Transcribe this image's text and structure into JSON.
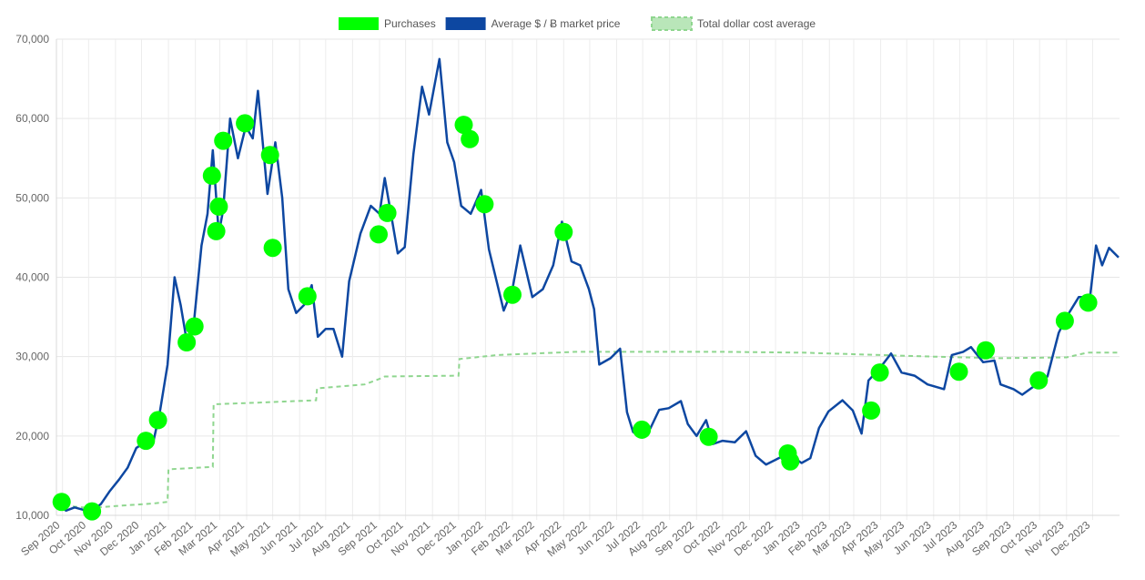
{
  "chart_data": {
    "type": "line",
    "title": "",
    "xlabel": "",
    "ylabel": "",
    "ylim": [
      10000,
      70000
    ],
    "xlim": [
      "2020-08-25",
      "2024-01-01"
    ],
    "grid": true,
    "legend": "top-center",
    "yticks": [
      10000,
      20000,
      30000,
      40000,
      50000,
      60000,
      70000
    ],
    "ytick_labels": [
      "10,000",
      "20,000",
      "30,000",
      "40,000",
      "50,000",
      "60,000",
      "70,000"
    ],
    "xticks": [
      {
        "label": "Sep 2020",
        "date": "2020-09-01"
      },
      {
        "label": "Oct 2020",
        "date": "2020-10-01"
      },
      {
        "label": "Nov 2020",
        "date": "2020-11-01"
      },
      {
        "label": "Dec 2020",
        "date": "2020-12-01"
      },
      {
        "label": "Jan 2021",
        "date": "2021-01-01"
      },
      {
        "label": "Feb 2021",
        "date": "2021-02-01"
      },
      {
        "label": "Mar 2021",
        "date": "2021-03-01"
      },
      {
        "label": "Apr 2021",
        "date": "2021-04-01"
      },
      {
        "label": "May 2021",
        "date": "2021-05-01"
      },
      {
        "label": "Jun 2021",
        "date": "2021-06-01"
      },
      {
        "label": "Jul 2021",
        "date": "2021-07-01"
      },
      {
        "label": "Aug 2021",
        "date": "2021-08-01"
      },
      {
        "label": "Sep 2021",
        "date": "2021-09-01"
      },
      {
        "label": "Oct 2021",
        "date": "2021-10-01"
      },
      {
        "label": "Nov 2021",
        "date": "2021-11-01"
      },
      {
        "label": "Dec 2021",
        "date": "2021-12-01"
      },
      {
        "label": "Jan 2022",
        "date": "2022-01-01"
      },
      {
        "label": "Feb 2022",
        "date": "2022-02-01"
      },
      {
        "label": "Mar 2022",
        "date": "2022-03-01"
      },
      {
        "label": "Apr 2022",
        "date": "2022-04-01"
      },
      {
        "label": "May 2022",
        "date": "2022-05-01"
      },
      {
        "label": "Jun 2022",
        "date": "2022-06-01"
      },
      {
        "label": "Jul 2022",
        "date": "2022-07-01"
      },
      {
        "label": "Aug 2022",
        "date": "2022-08-01"
      },
      {
        "label": "Sep 2022",
        "date": "2022-09-01"
      },
      {
        "label": "Oct 2022",
        "date": "2022-10-01"
      },
      {
        "label": "Nov 2022",
        "date": "2022-11-01"
      },
      {
        "label": "Dec 2022",
        "date": "2022-12-01"
      },
      {
        "label": "Jan 2023",
        "date": "2023-01-01"
      },
      {
        "label": "Feb 2023",
        "date": "2023-02-01"
      },
      {
        "label": "Mar 2023",
        "date": "2023-03-01"
      },
      {
        "label": "Apr 2023",
        "date": "2023-04-01"
      },
      {
        "label": "May 2023",
        "date": "2023-05-01"
      },
      {
        "label": "Jun 2023",
        "date": "2023-06-01"
      },
      {
        "label": "Jul 2023",
        "date": "2023-07-01"
      },
      {
        "label": "Aug 2023",
        "date": "2023-08-01"
      },
      {
        "label": "Sep 2023",
        "date": "2023-09-01"
      },
      {
        "label": "Oct 2023",
        "date": "2023-10-01"
      },
      {
        "label": "Nov 2023",
        "date": "2023-11-01"
      },
      {
        "label": "Dec 2023",
        "date": "2023-12-01"
      }
    ],
    "legend_items": [
      {
        "label": "Purchases",
        "color": "#00ff00",
        "style": "fill"
      },
      {
        "label": "Average $ / Ƀ market price",
        "color": "#0d47a1",
        "style": "fill"
      },
      {
        "label": "Total dollar cost average",
        "color": "#8fd68f",
        "style": "dashed"
      }
    ],
    "series": [
      {
        "name": "Average $ / Ƀ market price",
        "type": "line",
        "color": "#0d47a1",
        "points": [
          [
            "2020-08-25",
            11600
          ],
          [
            "2020-09-05",
            10600
          ],
          [
            "2020-09-15",
            11000
          ],
          [
            "2020-09-25",
            10700
          ],
          [
            "2020-10-05",
            10600
          ],
          [
            "2020-10-15",
            11400
          ],
          [
            "2020-10-25",
            13000
          ],
          [
            "2020-11-05",
            14500
          ],
          [
            "2020-11-15",
            16000
          ],
          [
            "2020-11-25",
            18500
          ],
          [
            "2020-12-05",
            19200
          ],
          [
            "2020-12-15",
            19500
          ],
          [
            "2020-12-22",
            23000
          ],
          [
            "2020-12-31",
            29000
          ],
          [
            "2021-01-08",
            40000
          ],
          [
            "2021-01-15",
            36500
          ],
          [
            "2021-01-22",
            32000
          ],
          [
            "2021-01-30",
            34000
          ],
          [
            "2021-02-08",
            44000
          ],
          [
            "2021-02-15",
            48000
          ],
          [
            "2021-02-21",
            56000
          ],
          [
            "2021-02-28",
            45500
          ],
          [
            "2021-03-05",
            48500
          ],
          [
            "2021-03-13",
            60000
          ],
          [
            "2021-03-22",
            55000
          ],
          [
            "2021-03-31",
            59000
          ],
          [
            "2021-04-08",
            57500
          ],
          [
            "2021-04-14",
            63500
          ],
          [
            "2021-04-25",
            50500
          ],
          [
            "2021-05-04",
            57000
          ],
          [
            "2021-05-12",
            50000
          ],
          [
            "2021-05-19",
            38500
          ],
          [
            "2021-05-28",
            35500
          ],
          [
            "2021-06-06",
            36500
          ],
          [
            "2021-06-15",
            39000
          ],
          [
            "2021-06-22",
            32500
          ],
          [
            "2021-07-01",
            33500
          ],
          [
            "2021-07-10",
            33500
          ],
          [
            "2021-07-20",
            30000
          ],
          [
            "2021-07-28",
            39500
          ],
          [
            "2021-08-10",
            45500
          ],
          [
            "2021-08-22",
            49000
          ],
          [
            "2021-09-01",
            48000
          ],
          [
            "2021-09-07",
            52500
          ],
          [
            "2021-09-15",
            47500
          ],
          [
            "2021-09-22",
            43000
          ],
          [
            "2021-09-30",
            43800
          ],
          [
            "2021-10-10",
            55500
          ],
          [
            "2021-10-20",
            64000
          ],
          [
            "2021-10-28",
            60500
          ],
          [
            "2021-11-09",
            67500
          ],
          [
            "2021-11-18",
            57000
          ],
          [
            "2021-11-26",
            54500
          ],
          [
            "2021-12-04",
            49000
          ],
          [
            "2021-12-15",
            48000
          ],
          [
            "2021-12-27",
            51000
          ],
          [
            "2022-01-05",
            43500
          ],
          [
            "2022-01-22",
            35800
          ],
          [
            "2022-02-01",
            38500
          ],
          [
            "2022-02-10",
            44000
          ],
          [
            "2022-02-24",
            37500
          ],
          [
            "2022-03-08",
            38500
          ],
          [
            "2022-03-20",
            41500
          ],
          [
            "2022-03-30",
            47000
          ],
          [
            "2022-04-10",
            42000
          ],
          [
            "2022-04-20",
            41500
          ],
          [
            "2022-04-30",
            38500
          ],
          [
            "2022-05-06",
            36000
          ],
          [
            "2022-05-12",
            29000
          ],
          [
            "2022-05-25",
            29800
          ],
          [
            "2022-06-05",
            31000
          ],
          [
            "2022-06-13",
            23000
          ],
          [
            "2022-06-20",
            20500
          ],
          [
            "2022-06-30",
            19800
          ],
          [
            "2022-07-10",
            21000
          ],
          [
            "2022-07-20",
            23300
          ],
          [
            "2022-07-31",
            23500
          ],
          [
            "2022-08-14",
            24400
          ],
          [
            "2022-08-22",
            21500
          ],
          [
            "2022-09-01",
            20000
          ],
          [
            "2022-09-12",
            22000
          ],
          [
            "2022-09-20",
            19000
          ],
          [
            "2022-10-01",
            19400
          ],
          [
            "2022-10-15",
            19200
          ],
          [
            "2022-10-28",
            20600
          ],
          [
            "2022-11-08",
            17500
          ],
          [
            "2022-11-20",
            16400
          ],
          [
            "2022-12-01",
            17000
          ],
          [
            "2022-12-15",
            17800
          ],
          [
            "2022-12-31",
            16600
          ],
          [
            "2023-01-10",
            17200
          ],
          [
            "2023-01-20",
            21000
          ],
          [
            "2023-01-31",
            23100
          ],
          [
            "2023-02-16",
            24500
          ],
          [
            "2023-02-28",
            23200
          ],
          [
            "2023-03-10",
            20300
          ],
          [
            "2023-03-18",
            27000
          ],
          [
            "2023-03-30",
            28400
          ],
          [
            "2023-04-13",
            30400
          ],
          [
            "2023-04-25",
            28000
          ],
          [
            "2023-05-10",
            27600
          ],
          [
            "2023-05-25",
            26500
          ],
          [
            "2023-06-13",
            25900
          ],
          [
            "2023-06-22",
            30200
          ],
          [
            "2023-07-05",
            30600
          ],
          [
            "2023-07-14",
            31200
          ],
          [
            "2023-07-28",
            29300
          ],
          [
            "2023-08-10",
            29500
          ],
          [
            "2023-08-17",
            26500
          ],
          [
            "2023-09-01",
            25900
          ],
          [
            "2023-09-11",
            25200
          ],
          [
            "2023-09-25",
            26300
          ],
          [
            "2023-10-10",
            27500
          ],
          [
            "2023-10-23",
            33000
          ],
          [
            "2023-11-01",
            35000
          ],
          [
            "2023-11-15",
            37500
          ],
          [
            "2023-11-28",
            37500
          ],
          [
            "2023-12-05",
            44000
          ],
          [
            "2023-12-12",
            41500
          ],
          [
            "2023-12-20",
            43700
          ],
          [
            "2023-12-31",
            42500
          ]
        ]
      },
      {
        "name": "Total dollar cost average",
        "type": "step-dashed",
        "color": "#8fd68f",
        "points": [
          [
            "2020-08-25",
            11300
          ],
          [
            "2020-09-25",
            11000
          ],
          [
            "2020-10-05",
            10950
          ],
          [
            "2020-11-05",
            11200
          ],
          [
            "2020-12-15",
            11500
          ],
          [
            "2020-12-31",
            11700
          ],
          [
            "2021-01-01",
            15800
          ],
          [
            "2021-02-21",
            16100
          ],
          [
            "2021-02-22",
            24000
          ],
          [
            "2021-04-14",
            24200
          ],
          [
            "2021-06-20",
            24500
          ],
          [
            "2021-06-21",
            26000
          ],
          [
            "2021-08-15",
            26500
          ],
          [
            "2021-09-01",
            27200
          ],
          [
            "2021-09-07",
            27500
          ],
          [
            "2021-12-01",
            27600
          ],
          [
            "2021-12-02",
            29700
          ],
          [
            "2022-01-15",
            30200
          ],
          [
            "2022-04-15",
            30600
          ],
          [
            "2022-10-01",
            30600
          ],
          [
            "2023-01-01",
            30500
          ],
          [
            "2023-04-01",
            30200
          ],
          [
            "2023-06-01",
            30000
          ],
          [
            "2023-08-15",
            29800
          ],
          [
            "2023-11-01",
            29900
          ],
          [
            "2023-11-25",
            30500
          ],
          [
            "2023-12-31",
            30500
          ]
        ]
      },
      {
        "name": "Purchases",
        "type": "scatter",
        "color": "#00ff00",
        "points": [
          [
            "2020-08-31",
            11700
          ],
          [
            "2020-10-05",
            10500
          ],
          [
            "2020-12-06",
            19400
          ],
          [
            "2020-12-20",
            22000
          ],
          [
            "2021-01-22",
            31800
          ],
          [
            "2021-01-31",
            33800
          ],
          [
            "2021-02-20",
            52800
          ],
          [
            "2021-02-25",
            45800
          ],
          [
            "2021-02-28",
            48900
          ],
          [
            "2021-03-05",
            57200
          ],
          [
            "2021-03-30",
            59400
          ],
          [
            "2021-04-28",
            55400
          ],
          [
            "2021-05-01",
            43700
          ],
          [
            "2021-06-10",
            37600
          ],
          [
            "2021-08-31",
            45400
          ],
          [
            "2021-09-10",
            48100
          ],
          [
            "2021-12-07",
            59200
          ],
          [
            "2021-12-14",
            57400
          ],
          [
            "2021-12-31",
            49200
          ],
          [
            "2022-02-01",
            37800
          ],
          [
            "2022-04-01",
            45700
          ],
          [
            "2022-06-30",
            20800
          ],
          [
            "2022-09-15",
            19900
          ],
          [
            "2022-12-15",
            17800
          ],
          [
            "2022-12-18",
            16800
          ],
          [
            "2023-03-21",
            23200
          ],
          [
            "2023-03-31",
            28000
          ],
          [
            "2023-06-30",
            28100
          ],
          [
            "2023-07-31",
            30800
          ],
          [
            "2023-09-30",
            27000
          ],
          [
            "2023-10-30",
            34500
          ],
          [
            "2023-11-26",
            36800
          ]
        ]
      }
    ]
  }
}
